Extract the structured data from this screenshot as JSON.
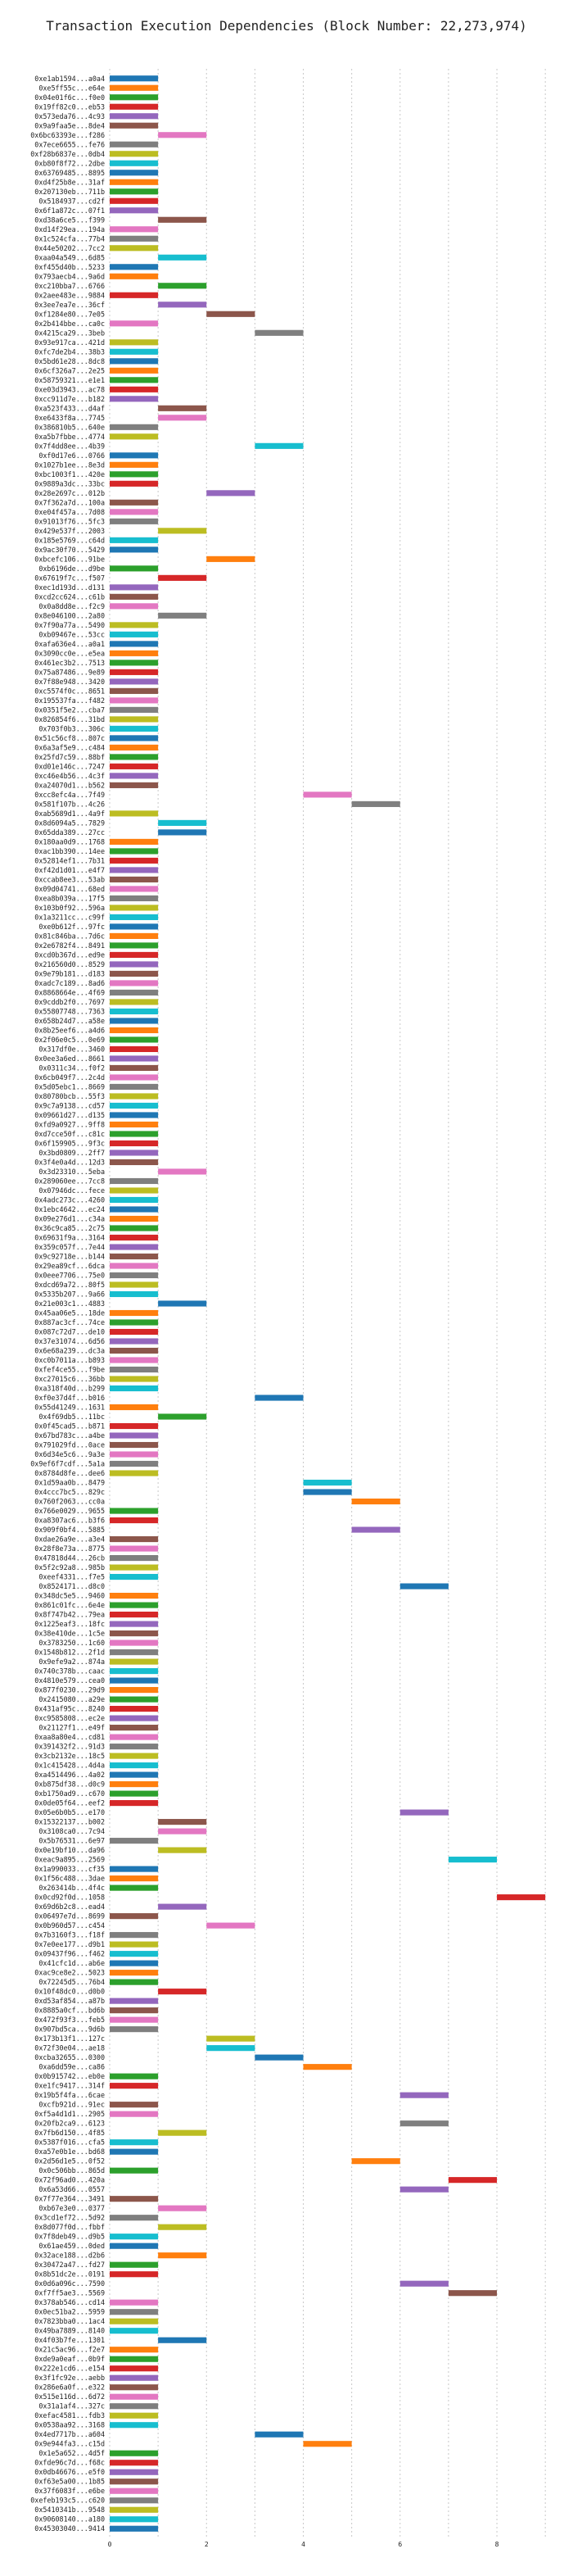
{
  "chart_data": {
    "type": "bar",
    "orientation": "horizontal-gantt",
    "title": "Transaction Execution Dependencies (Block Number: 22,273,974)",
    "xlabel": "",
    "ylabel": "",
    "xlim": [
      0,
      9.2
    ],
    "xticks": [
      0,
      2,
      4,
      6,
      8
    ],
    "grid": "vertical-dashed",
    "palette": [
      "#1f77b4",
      "#ff7f0e",
      "#2ca02c",
      "#d62728",
      "#9467bd",
      "#8c564b",
      "#e377c2",
      "#7f7f7f",
      "#bcbd22",
      "#17becf"
    ],
    "categories": [
      "0xe1ab1594...a0a4",
      "0xe5ff55c...e64e",
      "0x04e01f6c...f0e0",
      "0x19ff82c0...eb53",
      "0x573eda76...4c93",
      "0x9a9faa5e...8de4",
      "0x6bc63393e...f286",
      "0x7ece6655...fe76",
      "0xf28b6837e...0db4",
      "0xb80f8f72...2dbe",
      "0x63769485...8895",
      "0xd4f25b8e...31af",
      "0x207130eb...711b",
      "0x5184937...cd2f",
      "0x6f1a872c...07f1",
      "0xd38a6ce5...f399",
      "0xd14f29ea...194a",
      "0x1c524cfa...77b4",
      "0x44e50202...7cc2",
      "0xaa04a549...6d85",
      "0xf455d40b...5233",
      "0x793aecb4...9a6d",
      "0xc210bba7...6766",
      "0x2aee483e...9884",
      "0x3ee7ea7e...36cf",
      "0xf1284e80...7e05",
      "0x2b414bbe...ca0c",
      "0x4215ca29...3beb",
      "0x93e917ca...421d",
      "0xfc7de2b4...38b3",
      "0x5bd61e28...8dc8",
      "0x6cf326a7...2e25",
      "0x58759321...e1e1",
      "0xe03d3943...ac78",
      "0xcc911d7e...b182",
      "0xa523f433...d4af",
      "0xe6433f8a...7745",
      "0x386810b5...640e",
      "0xa5b7fbbe...4774",
      "0x7f4dd8ee...4b39",
      "0xf0d17e6...0766",
      "0x1027b1ee...8e3d",
      "0xbc1003f1...420e",
      "0x9889a3dc...33bc",
      "0x28e2697c...012b",
      "0x7f362a7d...100a",
      "0xe04f457a...7d08",
      "0x91013f76...5fc3",
      "0x429e537f...2003",
      "0x185e5769...c64d",
      "0x9ac30f70...5429",
      "0xbcefc106...91be",
      "0xb6196de...d9be",
      "0x67619f7c...f507",
      "0xec1d193d...d131",
      "0xcd2cc624...c61b",
      "0x0a8dd8e...f2c9",
      "0x8e046100...2a80",
      "0x7f90a77a...5490",
      "0xb09467e...53cc",
      "0xafa636e4...a0a1",
      "0x3090cc0e...e5ea",
      "0x461ec3b2...7513",
      "0x75a87486...9e89",
      "0x7f88e948...3420",
      "0xc5574f0c...8651",
      "0x195537fa...f482",
      "0x0351f5e2...cba7",
      "0x826854f6...31bd",
      "0x703f0b3...306c",
      "0x51c56cf8...807c",
      "0x6a3af5e9...c484",
      "0x25fd7c59...88bf",
      "0xd01e146c...7247",
      "0xc46e4b56...4c3f",
      "0xa24070d1...b562",
      "0xcc8efc4a...7f49",
      "0x581f107b...4c26",
      "0xab5689d1...4a9f",
      "0x8d6094a5...7829",
      "0x65dda389...27cc",
      "0x180aa0d9...1768",
      "0xac1bb390...14ee",
      "0x52814ef1...7b31",
      "0xf42d1d01...e4f7",
      "0xccab8ee3...53ab",
      "0x09d04741...68ed",
      "0xea8b039a...17f5",
      "0x103b0f92...596a",
      "0x1a3211cc...c99f",
      "0xe0b612f...97fc",
      "0x81c846ba...7d6c",
      "0x2e6782f4...8491",
      "0xcd0b367d...ed9e",
      "0x216560d0...8529",
      "0x9e79b181...d183",
      "0xadc7c189...8ad6",
      "0x8868664e...4f69",
      "0x9cddb2f0...7697",
      "0x55807748...7363",
      "0x658b24d7...a58e",
      "0x8b25eef6...a4d6",
      "0x2f06e0c5...0e69",
      "0x317df0e...3460",
      "0x0ee3a6ed...8661",
      "0x0311c34...f0f2",
      "0x6cb049f7...2c4d",
      "0x5d05ebc1...8669",
      "0x80780bcb...55f3",
      "0x9c7a9138...cd57",
      "0x09661d27...d135",
      "0xfd9a0927...9ff8",
      "0xd7cce50f...c81c",
      "0x6f159905...9f3c",
      "0x3bd0809...2ff7",
      "0x3f4e0a4d...12d3",
      "0x3d23310...5eba",
      "0x289060ee...7cc8",
      "0x07946dc...fece",
      "0x4adc273c...4260",
      "0x1ebc4642...ec24",
      "0x09e276d1...c34a",
      "0x36c9ca85...2c75",
      "0x69631f9a...3164",
      "0x359c057f...7e44",
      "0x9c92718e...b144",
      "0x29ea89cf...6dca",
      "0x0eee7706...75e0",
      "0xdcd69a72...80f5",
      "0x5335b207...9a66",
      "0x21e003c1...4883",
      "0x45aa06e5...18de",
      "0x887ac3cf...74ce",
      "0x087c72d7...de10",
      "0x37e31074...6d56",
      "0x6e68a239...dc3a",
      "0xc0b7011a...b893",
      "0xfef4ce55...f9be",
      "0xc27015c6...36bb",
      "0xa318f40d...b299",
      "0xf0e37d4f...b016",
      "0x55d41249...1631",
      "0x4f69db5...11bc",
      "0x0f45cad5...b871",
      "0x67bd783c...a4be",
      "0x791029fd...0ace",
      "0x6d34e5c6...9a3e",
      "0x9ef6f7cdf...5a1a",
      "0x8784d8fe...dee6",
      "0x1d59aa0b...8479",
      "0x4ccc7bc5...829c",
      "0x760f2063...cc0a",
      "0x766e0029...9655",
      "0xa8307ac6...b3f6",
      "0x909f0bf4...5885",
      "0xdae26a9e...a3e4",
      "0x28f8e73a...8775",
      "0x47818d44...26cb",
      "0x5f2c92a8...985b",
      "0xeef4331...f7e5",
      "0x8524171...d8c0",
      "0x348dc5e5...9460",
      "0x861c01fc...6e4e",
      "0x8f747b42...79ea",
      "0x1225eaf3...18fc",
      "0x38e410de...1c5e",
      "0x3783250...1c60",
      "0x1548b812...2f1d",
      "0x9efe9a2...874a",
      "0x740c378b...caac",
      "0x4810e579...cea0",
      "0x877f0230...29d9",
      "0x2415080...a29e",
      "0x431af95c...8240",
      "0xc9585808...ec2e",
      "0x21127f1...e49f",
      "0xaa8a80e4...cd81",
      "0x391432f2...91d3",
      "0x3cb2132e...18c5",
      "0x1c415428...4d4a",
      "0xa4514496...4a02",
      "0xb875df38...d0c9",
      "0xb1750ad9...c670",
      "0x0de05f64...eef2",
      "0x05e6b0b5...e170",
      "0x15322137...b002",
      "0x3108ca0...7c94",
      "0x5b76531...6e97",
      "0x0e19bf10...da96",
      "0xeac9a895...2569",
      "0x1a990033...cf35",
      "0x1f56c488...3dae",
      "0x263414b...4f4c",
      "0x0cd92f0d...1058",
      "0x69d6b2c8...ead4",
      "0x06497e7d...8699",
      "0x0b960d57...c454",
      "0x7b3160f3...f18f",
      "0x7e0ee177...d9b1",
      "0x09437f96...f462",
      "0x41cfc1d...ab6e",
      "0xac9ce8e2...5023",
      "0x72245d5...76b4",
      "0x10f48dc0...d0b0",
      "0xd53af854...a87b",
      "0x8885a0cf...bd6b",
      "0x472f93f3...feb5",
      "0x907bd5ca...9d6b",
      "0x173b13f1...127c",
      "0x72f30e04...ae18",
      "0xcba32655...0300",
      "0xa6dd59e...ca86",
      "0x0b915742...eb0e",
      "0xe1fc9417...314f",
      "0x19b5f4fa...6cae",
      "0xcfb921d...91ec",
      "0xf5a4d1d1...2905",
      "0x20fb2ca9...6123",
      "0x7fb6d150...4f85",
      "0x5387f016...cfa5",
      "0xa57e0b1e...bd68",
      "0x2d56d1e5...0f52",
      "0x0c506bb...865d",
      "0x72f96ad0...420a",
      "0x6a53d66...0557",
      "0x7f77e364...3491",
      "0xb67e3e0...0377",
      "0x3cd1ef72...5d92",
      "0x8d077f0d...fbbf",
      "0x7f8deb49...d9b5",
      "0x61ae459...0ded",
      "0x32ace188...d2b6",
      "0x30472a47...fd27",
      "0x8b51dc2e...0191",
      "0x0d6a096c...7590",
      "0xf7ff5ae3...5569",
      "0x378ab546...cd14",
      "0x0ec51ba2...5959",
      "0x7823bba0...1ac4",
      "0x49ba7889...8140",
      "0x4f03b7fe...1301",
      "0x21c5ac96...f2e7",
      "0xde9a0eaf...0b9f",
      "0x222e1cd6...e154",
      "0x3f1fc92e...aebb",
      "0x286e6a0f...e322",
      "0x515e116d...6d72",
      "0x31a1af4...327c",
      "0xefac4581...fdb3",
      "0x0538aa92...3168",
      "0x4ed7717b...a604",
      "0x9e944fa3...c15d",
      "0x1e5a652...4d5f",
      "0xfde96c7d...f68c",
      "0x0db46676...e5f0",
      "0xf63e5a00...1b85",
      "0x37f6083f...e6be",
      "0xefeb193c5...c620",
      "0x5410341b...9548",
      "0x90608140...a180",
      "0x45303040...9414"
    ],
    "series": [
      {
        "start": [
          0,
          0,
          0,
          0,
          0,
          0,
          1,
          0,
          0,
          0,
          0,
          0,
          0,
          0,
          0,
          1,
          0,
          0,
          0,
          1,
          0,
          0,
          1,
          0,
          1,
          2,
          0,
          3,
          0,
          0,
          0,
          0,
          0,
          0,
          0,
          1,
          1,
          0,
          0,
          3,
          0,
          0,
          0,
          0,
          2,
          0,
          0,
          0,
          1,
          0,
          0,
          2,
          0,
          1,
          0,
          0,
          0,
          1,
          0,
          0,
          0,
          0,
          0,
          0,
          0,
          0,
          0,
          0,
          0,
          0,
          0,
          0,
          0,
          0,
          0,
          0,
          4,
          5,
          0,
          1,
          1,
          0,
          0,
          0,
          0,
          0,
          0,
          0,
          0,
          0,
          0,
          0,
          0,
          0,
          0,
          0,
          0,
          0,
          0,
          0,
          0,
          0,
          0,
          0,
          0,
          0,
          0,
          0,
          0,
          0,
          0,
          0,
          0,
          0,
          0,
          0,
          1,
          0,
          0,
          0,
          0,
          0,
          0,
          0,
          0,
          0,
          0,
          0,
          0,
          0,
          1,
          0,
          0,
          0,
          0,
          0,
          0,
          0,
          0,
          0,
          3,
          0,
          1,
          0,
          0,
          0,
          0,
          0,
          0,
          4,
          4,
          5,
          0,
          0,
          5,
          0,
          0,
          0,
          0,
          0,
          6,
          0,
          0,
          0,
          0,
          0,
          0,
          0,
          0,
          0,
          0,
          0,
          0,
          0,
          0,
          0,
          0,
          0,
          0,
          0,
          0,
          0,
          0,
          0,
          6,
          1,
          1,
          0,
          1,
          7,
          0,
          0,
          0,
          8,
          1,
          0,
          2,
          0,
          0,
          0,
          0,
          0,
          0,
          1,
          0,
          0,
          0,
          0,
          2,
          2,
          3,
          4,
          0,
          0,
          6,
          0,
          0,
          6,
          1,
          0,
          0,
          5,
          0,
          7,
          6,
          0,
          1,
          0,
          1,
          0,
          0,
          1,
          0,
          0,
          6,
          7,
          0,
          0,
          0,
          0,
          1,
          0,
          0,
          0,
          0,
          0,
          0,
          0,
          0,
          0,
          3,
          4,
          0,
          0,
          0,
          0,
          0,
          0,
          0,
          0,
          0
        ],
        "duration": [
          1,
          1,
          1,
          1,
          1,
          1,
          1,
          1,
          1,
          1,
          1,
          1,
          1,
          1,
          1,
          1,
          1,
          1,
          1,
          1,
          1,
          1,
          1,
          1,
          1,
          1,
          1,
          1,
          1,
          1,
          1,
          1,
          1,
          1,
          1,
          1,
          1,
          1,
          1,
          1,
          1,
          1,
          1,
          1,
          1,
          1,
          1,
          1,
          1,
          1,
          1,
          1,
          1,
          1,
          1,
          1,
          1,
          1,
          1,
          1,
          1,
          1,
          1,
          1,
          1,
          1,
          1,
          1,
          1,
          1,
          1,
          1,
          1,
          1,
          1,
          1,
          1,
          1,
          1,
          1,
          1,
          1,
          1,
          1,
          1,
          1,
          1,
          1,
          1,
          1,
          1,
          1,
          1,
          1,
          1,
          1,
          1,
          1,
          1,
          1,
          1,
          1,
          1,
          1,
          1,
          1,
          1,
          1,
          1,
          1,
          1,
          1,
          1,
          1,
          1,
          1,
          1,
          1,
          1,
          1,
          1,
          1,
          1,
          1,
          1,
          1,
          1,
          1,
          1,
          1,
          1,
          1,
          1,
          1,
          1,
          1,
          1,
          1,
          1,
          1,
          1,
          1,
          1,
          1,
          1,
          1,
          1,
          1,
          1,
          1,
          1,
          1,
          1,
          1,
          1,
          1,
          1,
          1,
          1,
          1,
          1,
          1,
          1,
          1,
          1,
          1,
          1,
          1,
          1,
          1,
          1,
          1,
          1,
          1,
          1,
          1,
          1,
          1,
          1,
          1,
          1,
          1,
          1,
          1,
          1,
          1,
          1,
          1,
          1,
          1,
          1,
          1,
          1,
          1,
          1,
          1,
          1,
          1,
          1,
          1,
          1,
          1,
          1,
          1,
          1,
          1,
          1,
          1,
          1,
          1,
          1,
          1,
          1,
          1,
          1,
          1,
          1,
          1,
          1,
          1,
          1,
          1,
          1,
          1,
          1,
          1,
          1,
          1,
          1,
          1,
          1,
          1,
          1,
          1,
          1,
          1,
          1,
          1,
          1,
          1,
          1,
          1,
          1,
          1,
          1,
          1,
          1,
          1,
          1,
          1,
          1,
          1,
          1,
          1,
          1,
          1,
          1,
          1,
          1,
          1,
          1
        ]
      }
    ]
  }
}
